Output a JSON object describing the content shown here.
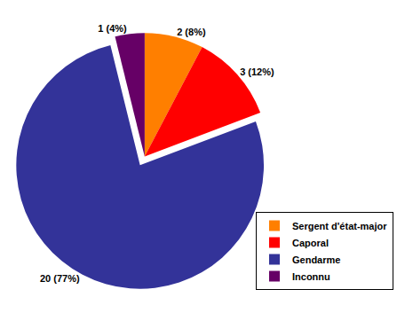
{
  "chart_data": {
    "type": "pie",
    "categories": [
      "Sergent d'état-major",
      "Caporal",
      "Gendarme",
      "Inconnu"
    ],
    "values": [
      2,
      3,
      20,
      1
    ],
    "value_labels": [
      "2 (8%)",
      "3 (12%)",
      "20 (77%)",
      "1 (4%)"
    ],
    "colors": [
      "#ff7f00",
      "#ff0000",
      "#333399",
      "#660066"
    ],
    "data_labels": true,
    "legend": "lower right"
  }
}
